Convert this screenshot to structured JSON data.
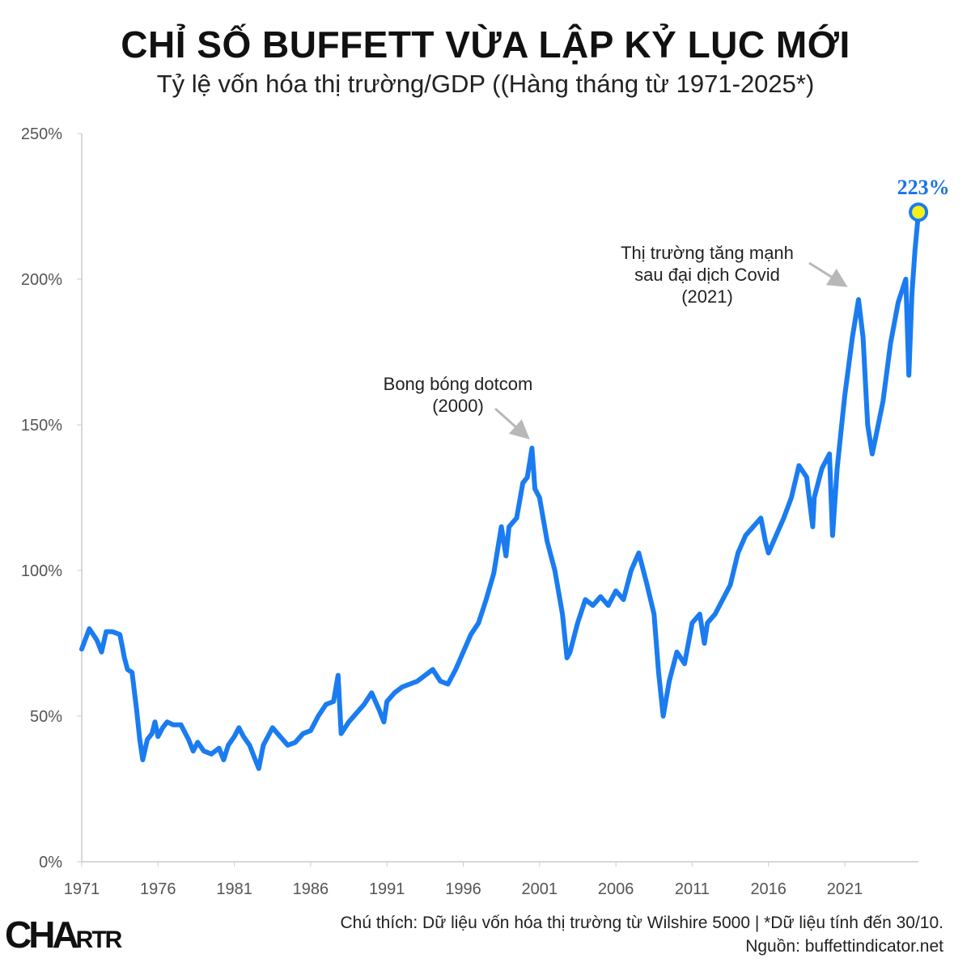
{
  "title": "CHỈ SỐ BUFFETT VỪA LẬP KỶ LỤC MỚI",
  "subtitle": "Tỷ lệ vốn hóa thị trường/GDP ((Hàng tháng từ 1971-2025*)",
  "footer": {
    "note": "Chú thích: Dữ liệu vốn hóa thị trường từ Wilshire 5000 | *Dữ liệu tính đến 30/10.",
    "source": "Nguồn: buffettindicator.net",
    "logo": "CHARTR"
  },
  "colors": {
    "line": "#1a7cf0",
    "end_marker_fill": "#f5ef1a",
    "arrow": "#b8b8b8"
  },
  "chart_data": {
    "type": "line",
    "title": "CHỈ SỐ BUFFETT VỪA LẬP KỶ LỤC MỚI",
    "xlim": [
      1971,
      2025.83
    ],
    "ylim": [
      0,
      250
    ],
    "x_ticks": [
      "1971",
      "1976",
      "1981",
      "1986",
      "1991",
      "1996",
      "2001",
      "2006",
      "2011",
      "2016",
      "2021"
    ],
    "y_ticks": [
      "0%",
      "50%",
      "100%",
      "150%",
      "200%",
      "250%"
    ],
    "grid": false,
    "annotations": [
      {
        "lines": [
          "Bong bóng dotcom",
          "(2000)"
        ],
        "x": 2000.3,
        "y": 142
      },
      {
        "lines": [
          "Thị trường tăng mạnh",
          "sau đại dịch Covid",
          "(2021)"
        ],
        "x": 2021.9,
        "y": 193
      }
    ],
    "end_label": "223%",
    "series": [
      {
        "points": [
          [
            1971.0,
            73
          ],
          [
            1971.5,
            80
          ],
          [
            1972.0,
            76
          ],
          [
            1972.3,
            72
          ],
          [
            1972.6,
            79
          ],
          [
            1973.0,
            79
          ],
          [
            1973.5,
            78
          ],
          [
            1973.8,
            70
          ],
          [
            1974.0,
            66
          ],
          [
            1974.3,
            65
          ],
          [
            1974.6,
            52
          ],
          [
            1974.8,
            42
          ],
          [
            1975.0,
            35
          ],
          [
            1975.3,
            42
          ],
          [
            1975.6,
            44
          ],
          [
            1975.8,
            48
          ],
          [
            1976.0,
            43
          ],
          [
            1976.3,
            46
          ],
          [
            1976.6,
            48
          ],
          [
            1977.0,
            47
          ],
          [
            1977.5,
            47
          ],
          [
            1978.0,
            42
          ],
          [
            1978.3,
            38
          ],
          [
            1978.6,
            41
          ],
          [
            1979.0,
            38
          ],
          [
            1979.5,
            37
          ],
          [
            1980.0,
            39
          ],
          [
            1980.3,
            35
          ],
          [
            1980.6,
            40
          ],
          [
            1981.0,
            43
          ],
          [
            1981.3,
            46
          ],
          [
            1981.6,
            43
          ],
          [
            1982.0,
            40
          ],
          [
            1982.3,
            36
          ],
          [
            1982.6,
            32
          ],
          [
            1982.9,
            40
          ],
          [
            1983.5,
            46
          ],
          [
            1984.0,
            43
          ],
          [
            1984.5,
            40
          ],
          [
            1985.0,
            41
          ],
          [
            1985.5,
            44
          ],
          [
            1986.0,
            45
          ],
          [
            1986.5,
            50
          ],
          [
            1987.0,
            54
          ],
          [
            1987.5,
            55
          ],
          [
            1987.8,
            64
          ],
          [
            1988.0,
            44
          ],
          [
            1988.5,
            48
          ],
          [
            1989.0,
            51
          ],
          [
            1989.5,
            54
          ],
          [
            1990.0,
            58
          ],
          [
            1990.5,
            52
          ],
          [
            1990.8,
            48
          ],
          [
            1991.0,
            55
          ],
          [
            1991.5,
            58
          ],
          [
            1992.0,
            60
          ],
          [
            1993.0,
            62
          ],
          [
            1993.5,
            64
          ],
          [
            1994.0,
            66
          ],
          [
            1994.5,
            62
          ],
          [
            1995.0,
            61
          ],
          [
            1995.5,
            66
          ],
          [
            1996.0,
            72
          ],
          [
            1996.5,
            78
          ],
          [
            1997.0,
            82
          ],
          [
            1997.5,
            90
          ],
          [
            1998.0,
            99
          ],
          [
            1998.5,
            115
          ],
          [
            1998.8,
            105
          ],
          [
            1999.0,
            115
          ],
          [
            1999.5,
            118
          ],
          [
            1999.9,
            130
          ],
          [
            2000.2,
            132
          ],
          [
            2000.5,
            142
          ],
          [
            2000.7,
            128
          ],
          [
            2001.0,
            125
          ],
          [
            2001.5,
            110
          ],
          [
            2002.0,
            100
          ],
          [
            2002.5,
            85
          ],
          [
            2002.8,
            70
          ],
          [
            2003.0,
            72
          ],
          [
            2003.5,
            82
          ],
          [
            2004.0,
            90
          ],
          [
            2004.5,
            88
          ],
          [
            2005.0,
            91
          ],
          [
            2005.5,
            88
          ],
          [
            2006.0,
            93
          ],
          [
            2006.5,
            90
          ],
          [
            2007.0,
            100
          ],
          [
            2007.5,
            106
          ],
          [
            2008.0,
            96
          ],
          [
            2008.5,
            85
          ],
          [
            2008.8,
            65
          ],
          [
            2009.1,
            50
          ],
          [
            2009.5,
            62
          ],
          [
            2010.0,
            72
          ],
          [
            2010.5,
            68
          ],
          [
            2011.0,
            82
          ],
          [
            2011.5,
            85
          ],
          [
            2011.8,
            75
          ],
          [
            2012.0,
            82
          ],
          [
            2012.5,
            85
          ],
          [
            2013.0,
            90
          ],
          [
            2013.5,
            95
          ],
          [
            2014.0,
            106
          ],
          [
            2014.5,
            112
          ],
          [
            2015.0,
            115
          ],
          [
            2015.5,
            118
          ],
          [
            2015.8,
            110
          ],
          [
            2016.0,
            106
          ],
          [
            2016.5,
            112
          ],
          [
            2017.0,
            118
          ],
          [
            2017.5,
            125
          ],
          [
            2018.0,
            136
          ],
          [
            2018.5,
            132
          ],
          [
            2018.9,
            115
          ],
          [
            2019.0,
            125
          ],
          [
            2019.5,
            135
          ],
          [
            2020.0,
            140
          ],
          [
            2020.2,
            112
          ],
          [
            2020.5,
            135
          ],
          [
            2020.8,
            150
          ],
          [
            2021.0,
            160
          ],
          [
            2021.5,
            180
          ],
          [
            2021.9,
            193
          ],
          [
            2022.2,
            180
          ],
          [
            2022.5,
            150
          ],
          [
            2022.8,
            140
          ],
          [
            2023.0,
            145
          ],
          [
            2023.5,
            158
          ],
          [
            2024.0,
            178
          ],
          [
            2024.5,
            192
          ],
          [
            2025.0,
            200
          ],
          [
            2025.2,
            167
          ],
          [
            2025.4,
            195
          ],
          [
            2025.6,
            210
          ],
          [
            2025.83,
            223
          ]
        ]
      }
    ]
  }
}
